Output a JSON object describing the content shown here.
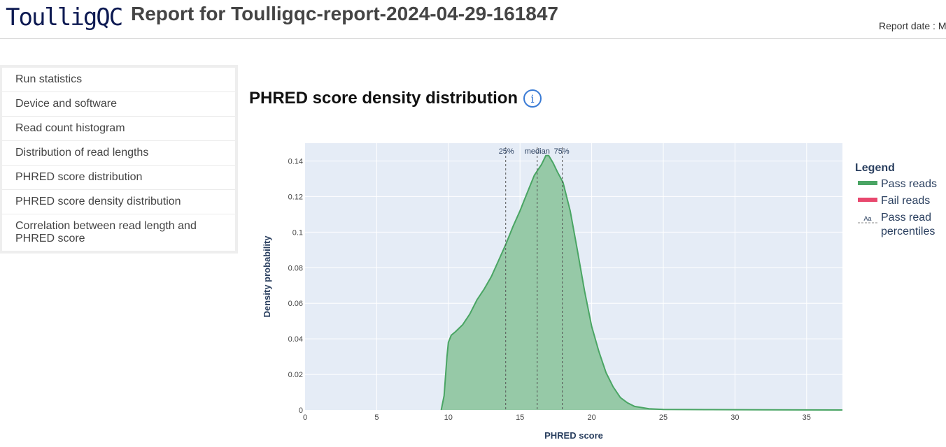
{
  "header": {
    "logo_text": "ToulligQC",
    "title": "Report for Toulligqc-report-2024-04-29-161847",
    "report_date": "Report date : M"
  },
  "sidebar": {
    "items": [
      {
        "label": "Run statistics"
      },
      {
        "label": "Device and software"
      },
      {
        "label": "Read count histogram"
      },
      {
        "label": "Distribution of read lengths"
      },
      {
        "label": "PHRED score distribution"
      },
      {
        "label": "PHRED score density distribution"
      },
      {
        "label": "Correlation between read length and PHRED score"
      }
    ]
  },
  "section": {
    "title": "PHRED score density distribution",
    "info_icon": "info-icon",
    "info_glyph": "i"
  },
  "chart_data": {
    "type": "area",
    "xlabel": "PHRED score",
    "ylabel": "Density probability",
    "xlim": [
      0,
      37.5
    ],
    "ylim": [
      0,
      0.15
    ],
    "xticks": [
      0,
      5,
      10,
      15,
      20,
      25,
      30,
      35
    ],
    "yticks": [
      0,
      0.02,
      0.04,
      0.06,
      0.08,
      0.1,
      0.12,
      0.14
    ],
    "ytick_labels": [
      "0",
      "0.02",
      "0.04",
      "0.06",
      "0.08",
      "0.1",
      "0.12",
      "0.14"
    ],
    "grid": true,
    "series": [
      {
        "name": "Pass reads",
        "color": "#4aa564",
        "fill": "#96c9a7",
        "x": [
          9.5,
          9.7,
          9.9,
          10.0,
          10.2,
          10.5,
          11.0,
          11.5,
          12.0,
          12.5,
          13.0,
          13.5,
          14.0,
          14.5,
          15.0,
          15.5,
          16.0,
          16.5,
          16.8,
          17.0,
          17.3,
          17.6,
          18.0,
          18.5,
          19.0,
          19.5,
          20.0,
          20.5,
          21.0,
          21.5,
          22.0,
          22.5,
          23.0,
          24.0,
          25.0,
          28.0,
          32.0,
          37.5
        ],
        "y": [
          0.0,
          0.008,
          0.03,
          0.038,
          0.042,
          0.044,
          0.048,
          0.054,
          0.062,
          0.068,
          0.075,
          0.084,
          0.093,
          0.103,
          0.112,
          0.122,
          0.132,
          0.138,
          0.143,
          0.143,
          0.139,
          0.134,
          0.128,
          0.112,
          0.09,
          0.067,
          0.047,
          0.033,
          0.021,
          0.013,
          0.007,
          0.004,
          0.002,
          0.0007,
          0.0003,
          0.0002,
          0.0001,
          0.0
        ]
      },
      {
        "name": "Fail reads",
        "color": "#e8486e",
        "x": [],
        "y": []
      }
    ],
    "percentiles": [
      {
        "label": "25%",
        "x": 14.0
      },
      {
        "label": "median",
        "x": 16.2
      },
      {
        "label": "75%",
        "x": 17.95
      }
    ],
    "legend": {
      "title": "Legend",
      "placement": "right",
      "entries": [
        {
          "label": "Pass reads",
          "color": "#4aa564"
        },
        {
          "label": "Fail reads",
          "color": "#e8486e"
        },
        {
          "label": "Pass read percentiles",
          "lines": [
            "Pass read",
            "percentiles"
          ],
          "swatch_text": "Aa"
        }
      ]
    }
  }
}
